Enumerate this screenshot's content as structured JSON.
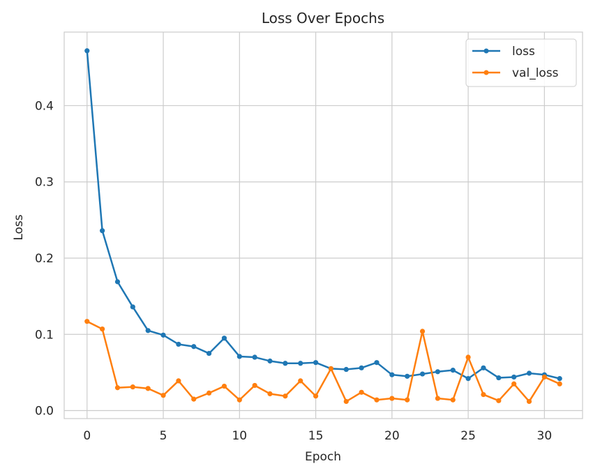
{
  "chart_data": {
    "type": "line",
    "title": "Loss Over Epochs",
    "xlabel": "Epoch",
    "ylabel": "Loss",
    "xlim": [
      -1.5,
      32.5
    ],
    "ylim": [
      -0.0105,
      0.4965
    ],
    "x_ticks": [
      0,
      5,
      10,
      15,
      20,
      25,
      30
    ],
    "y_ticks": [
      0.0,
      0.1,
      0.2,
      0.3,
      0.4
    ],
    "y_tick_labels": [
      "0.0",
      "0.1",
      "0.2",
      "0.3",
      "0.4"
    ],
    "grid": true,
    "legend_position": "top-right",
    "x": [
      0,
      1,
      2,
      3,
      4,
      5,
      6,
      7,
      8,
      9,
      10,
      11,
      12,
      13,
      14,
      15,
      16,
      17,
      18,
      19,
      20,
      21,
      22,
      23,
      24,
      25,
      26,
      27,
      28,
      29,
      30,
      31
    ],
    "series": [
      {
        "name": "loss",
        "color": "#1f77b4",
        "values": [
          0.472,
          0.236,
          0.169,
          0.136,
          0.105,
          0.099,
          0.087,
          0.084,
          0.075,
          0.095,
          0.071,
          0.07,
          0.065,
          0.062,
          0.062,
          0.063,
          0.055,
          0.054,
          0.056,
          0.063,
          0.047,
          0.045,
          0.048,
          0.051,
          0.053,
          0.042,
          0.056,
          0.043,
          0.044,
          0.049,
          0.047,
          0.042
        ]
      },
      {
        "name": "val_loss",
        "color": "#ff7f0e",
        "values": [
          0.117,
          0.107,
          0.03,
          0.031,
          0.029,
          0.02,
          0.039,
          0.015,
          0.023,
          0.032,
          0.014,
          0.033,
          0.022,
          0.019,
          0.039,
          0.019,
          0.055,
          0.012,
          0.024,
          0.014,
          0.016,
          0.014,
          0.104,
          0.016,
          0.014,
          0.07,
          0.021,
          0.013,
          0.035,
          0.012,
          0.044,
          0.035
        ]
      }
    ]
  }
}
